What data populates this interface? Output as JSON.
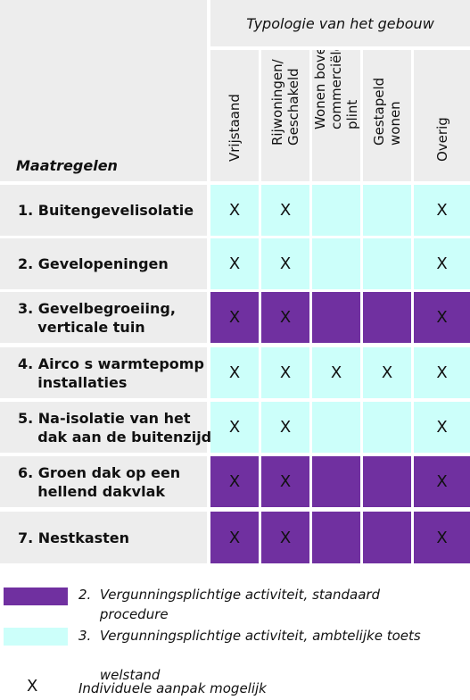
{
  "header": {
    "typology_title": "Typologie van het gebouw",
    "measures_label": "Maatregelen",
    "columns": [
      "Vrijstaand",
      "Rijwoningen/\nGeschakeld",
      "Wonen boven\ncommerciële\nplint",
      "Gestapeld\nwonen",
      "Overig"
    ]
  },
  "colors": {
    "purple": "#7030a0",
    "cyan": "#ccfffa",
    "grey": "#ededed",
    "white": "#ffffff"
  },
  "rows": [
    {
      "label": "1. Buitengevelisolatie",
      "color": "cyan",
      "marks": [
        "X",
        "X",
        "",
        "",
        "X"
      ]
    },
    {
      "label": "2. Gevelopeningen",
      "color": "cyan",
      "marks": [
        "X",
        "X",
        "",
        "",
        "X"
      ]
    },
    {
      "label": "3. Gevelbegroeiing,\n    verticale tuin",
      "color": "purple",
      "marks": [
        "X",
        "X",
        "",
        "",
        "X"
      ]
    },
    {
      "label": "4. Airco s warmtepomp\n    installaties",
      "color": "cyan",
      "marks": [
        "X",
        "X",
        "X",
        "X",
        "X"
      ]
    },
    {
      "label": "5. Na-isolatie van het\n    dak aan de buitenzijde",
      "color": "cyan",
      "marks": [
        "X",
        "X",
        "",
        "",
        "X"
      ]
    },
    {
      "label": "6. Groen dak op een\n    hellend dakvlak",
      "color": "purple",
      "marks": [
        "X",
        "X",
        "",
        "",
        "X"
      ]
    },
    {
      "label": "7. Nestkasten",
      "color": "purple",
      "marks": [
        "X",
        "X",
        "",
        "",
        "X"
      ]
    }
  ],
  "legend": {
    "purple_text": "2.  Vergunningsplichtige activiteit, standaard\n     procedure",
    "cyan_text": "3.  Vergunningsplichtige activiteit, ambtelijke toets\n\n     welstand",
    "x_symbol": "X",
    "x_text": "Individuele aanpak mogelijk"
  }
}
